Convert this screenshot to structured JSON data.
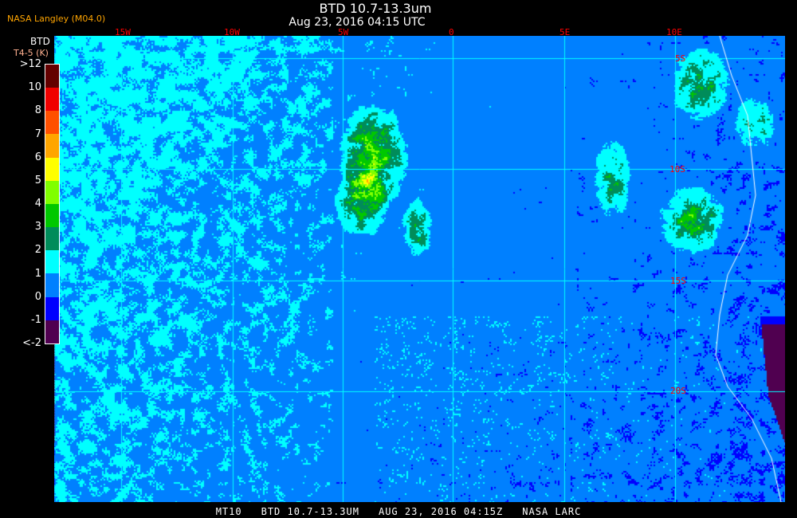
{
  "header": {
    "title": "BTD 10.7-13.3um",
    "subtitle": "Aug 23, 2016 04:15 UTC",
    "organization": "NASA Langley (M04.0)"
  },
  "map": {
    "longitude_labels": [
      "15W",
      "10W",
      "5W",
      "0",
      "5E",
      "10E"
    ],
    "latitude_labels": [
      "5S",
      "10S",
      "15S",
      "20S"
    ],
    "gridline_color": "#00ffff",
    "coastline_color": "#ffffff"
  },
  "legend": {
    "title": "BTD",
    "unit": "T4-5 (K)",
    "ticks": [
      ">12",
      "10",
      "8",
      "7",
      "6",
      "5",
      "4",
      "3",
      "2",
      "1",
      "0",
      "-1",
      "<-2"
    ],
    "colors": [
      "#640000",
      "#f00000",
      "#ff5000",
      "#ffa500",
      "#ffff00",
      "#80ff00",
      "#00c800",
      "#008c5a",
      "#00ffff",
      "#0080ff",
      "#0000ff",
      "#500050"
    ]
  },
  "footer": {
    "satellite": "MT10",
    "product": "BTD 10.7-13.3UM",
    "datetime": "AUG 23, 2016 04:15Z",
    "source": "NASA LARC"
  }
}
